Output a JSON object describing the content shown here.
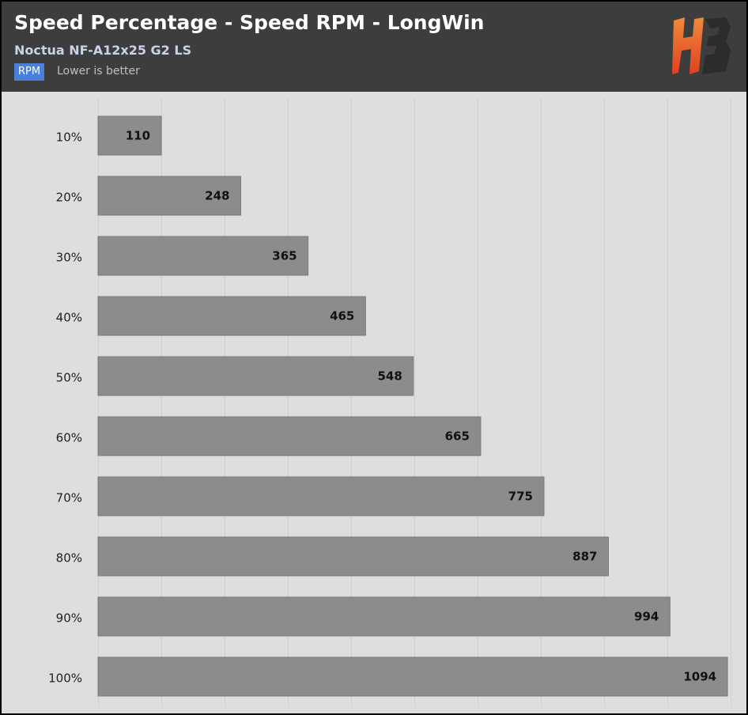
{
  "header": {
    "title": "Speed Percentage - Speed RPM - LongWin",
    "subtitle": "Noctua NF-A12x25 G2 LS",
    "unit_badge": "RPM",
    "note": "Lower is better"
  },
  "logo": {
    "icon": "hb-logo-icon",
    "colors": [
      "#e8552a",
      "#f08a3c",
      "#2a2a2a"
    ]
  },
  "colors": {
    "header_bg": "#3d3d3d",
    "plot_bg": "#dedede",
    "bar": "#8c8c8c",
    "bar_stroke": "#7a7a7a",
    "grid": "#cfcfcf",
    "badge": "#4a7fdc"
  },
  "chart_data": {
    "type": "bar",
    "orientation": "horizontal",
    "title": "Speed Percentage - Speed RPM - LongWin",
    "subtitle": "Noctua NF-A12x25 G2 LS",
    "unit": "RPM",
    "categories": [
      "10%",
      "20%",
      "30%",
      "40%",
      "50%",
      "60%",
      "70%",
      "80%",
      "90%",
      "100%"
    ],
    "values": [
      110,
      248,
      365,
      465,
      548,
      665,
      775,
      887,
      994,
      1094
    ],
    "xlim": [
      0,
      1100
    ],
    "grid": true,
    "data_labels": true
  }
}
